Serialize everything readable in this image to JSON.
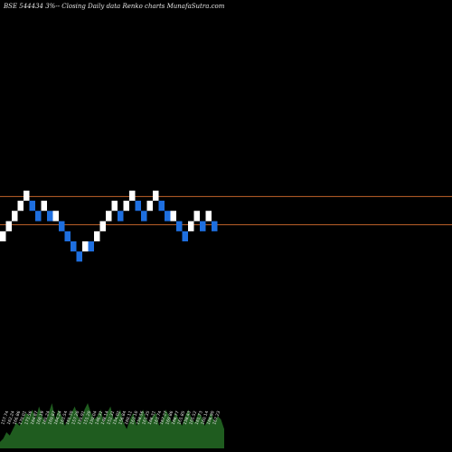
{
  "chart_data": {
    "type": "renko",
    "title": "BSE 544434  3%-- Closing Daily data  Renko  charts MunafaSutra.com",
    "up_color": "#ffffff",
    "down_color": "#1e6fe0",
    "line_color": "#c0622a",
    "volume_color": "#1f5c1f",
    "reference_levels": [
      177.5,
      164.1
    ],
    "price_range": [
      112,
      215
    ],
    "bricks": [
      {
        "dir": "up",
        "low": 156.2,
        "high": 161.0
      },
      {
        "dir": "up",
        "low": 161.0,
        "high": 165.8
      },
      {
        "dir": "up",
        "low": 165.8,
        "high": 170.7
      },
      {
        "dir": "up",
        "low": 170.7,
        "high": 175.5
      },
      {
        "dir": "up",
        "low": 175.5,
        "high": 180.3
      },
      {
        "dir": "down",
        "low": 170.7,
        "high": 175.5
      },
      {
        "dir": "down",
        "low": 165.8,
        "high": 170.7
      },
      {
        "dir": "up",
        "low": 170.7,
        "high": 175.5
      },
      {
        "dir": "down",
        "low": 165.8,
        "high": 170.7
      },
      {
        "dir": "up",
        "low": 165.8,
        "high": 170.7
      },
      {
        "dir": "down",
        "low": 161.0,
        "high": 165.8
      },
      {
        "dir": "down",
        "low": 156.2,
        "high": 161.0
      },
      {
        "dir": "down",
        "low": 151.4,
        "high": 156.2
      },
      {
        "dir": "down",
        "low": 146.6,
        "high": 151.4
      },
      {
        "dir": "up",
        "low": 151.4,
        "high": 156.2
      },
      {
        "dir": "down",
        "low": 151.4,
        "high": 156.2
      },
      {
        "dir": "up",
        "low": 156.2,
        "high": 161.0
      },
      {
        "dir": "up",
        "low": 161.0,
        "high": 165.8
      },
      {
        "dir": "up",
        "low": 165.8,
        "high": 170.7
      },
      {
        "dir": "up",
        "low": 170.7,
        "high": 175.5
      },
      {
        "dir": "down",
        "low": 165.8,
        "high": 170.7
      },
      {
        "dir": "up",
        "low": 170.7,
        "high": 175.5
      },
      {
        "dir": "up",
        "low": 175.5,
        "high": 180.3
      },
      {
        "dir": "down",
        "low": 170.7,
        "high": 175.5
      },
      {
        "dir": "down",
        "low": 165.8,
        "high": 170.7
      },
      {
        "dir": "up",
        "low": 170.7,
        "high": 175.5
      },
      {
        "dir": "up",
        "low": 175.5,
        "high": 180.3
      },
      {
        "dir": "down",
        "low": 170.7,
        "high": 175.5
      },
      {
        "dir": "down",
        "low": 165.8,
        "high": 170.7
      },
      {
        "dir": "up",
        "low": 165.8,
        "high": 170.7
      },
      {
        "dir": "down",
        "low": 161.0,
        "high": 165.8
      },
      {
        "dir": "down",
        "low": 156.2,
        "high": 161.0
      },
      {
        "dir": "up",
        "low": 161.0,
        "high": 165.8
      },
      {
        "dir": "up",
        "low": 165.8,
        "high": 170.7
      },
      {
        "dir": "down",
        "low": 161.0,
        "high": 165.8
      },
      {
        "dir": "up",
        "low": 165.8,
        "high": 170.7
      },
      {
        "dir": "down",
        "low": 161.0,
        "high": 165.8
      }
    ],
    "brick_labels": [
      "157.74",
      "162.24",
      "166.86",
      "170.01",
      "173.56",
      "164.87",
      "168.19",
      "165.24",
      "169.87",
      "164.24",
      "163.54",
      "161.30",
      "157.20",
      "155.91",
      "151.20",
      "150.04",
      "146.31",
      "148.14",
      "152.31",
      "154.02",
      "156.84",
      "160.11",
      "163.10",
      "158.56",
      "161.35",
      "166.31",
      "163.74",
      "167.27",
      "169.86",
      "166.77",
      "161.85",
      "158.43",
      "165.52",
      "161.73",
      "160.14",
      "166.90",
      "167.23"
    ],
    "volume": [
      2,
      3,
      5,
      4,
      6,
      8,
      7,
      9,
      11,
      10,
      12,
      9,
      13,
      10,
      8,
      11,
      14,
      9,
      12,
      10,
      7,
      9,
      11,
      13,
      10,
      8,
      12,
      14,
      11,
      9,
      10,
      12,
      8,
      11,
      13,
      9,
      10,
      12,
      8,
      6,
      9,
      11,
      7,
      10,
      12,
      9,
      8,
      10,
      11,
      7,
      9,
      12,
      10,
      8,
      11,
      9,
      7,
      10,
      12,
      9,
      8,
      11,
      10,
      7,
      9,
      11,
      8,
      10,
      9,
      6
    ]
  }
}
